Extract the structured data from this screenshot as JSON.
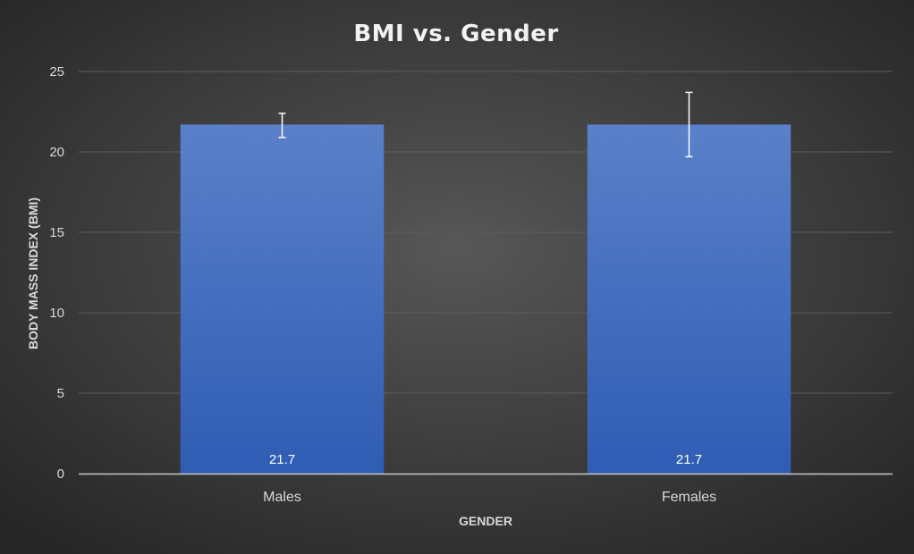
{
  "chart_data": {
    "type": "bar",
    "title": "BMI vs. Gender",
    "xlabel": "GENDER",
    "ylabel": "BODY MASS INDEX (BMI)",
    "categories": [
      "Males",
      "Females"
    ],
    "values": [
      21.7,
      21.7
    ],
    "error_bars": [
      {
        "low": 20.9,
        "high": 22.4
      },
      {
        "low": 19.7,
        "high": 23.7
      }
    ],
    "data_labels": [
      "21.7",
      "21.7"
    ],
    "yticks": [
      0,
      5,
      10,
      15,
      20,
      25
    ],
    "ylim": [
      0,
      25
    ],
    "grid": true,
    "legend": "none",
    "colors": {
      "bar_top": "#5a80c9",
      "bar_bottom": "#2f5db4",
      "background": "#2b2b2b",
      "gridline": "#5c5c5c",
      "text": "#d9d9d9"
    }
  }
}
